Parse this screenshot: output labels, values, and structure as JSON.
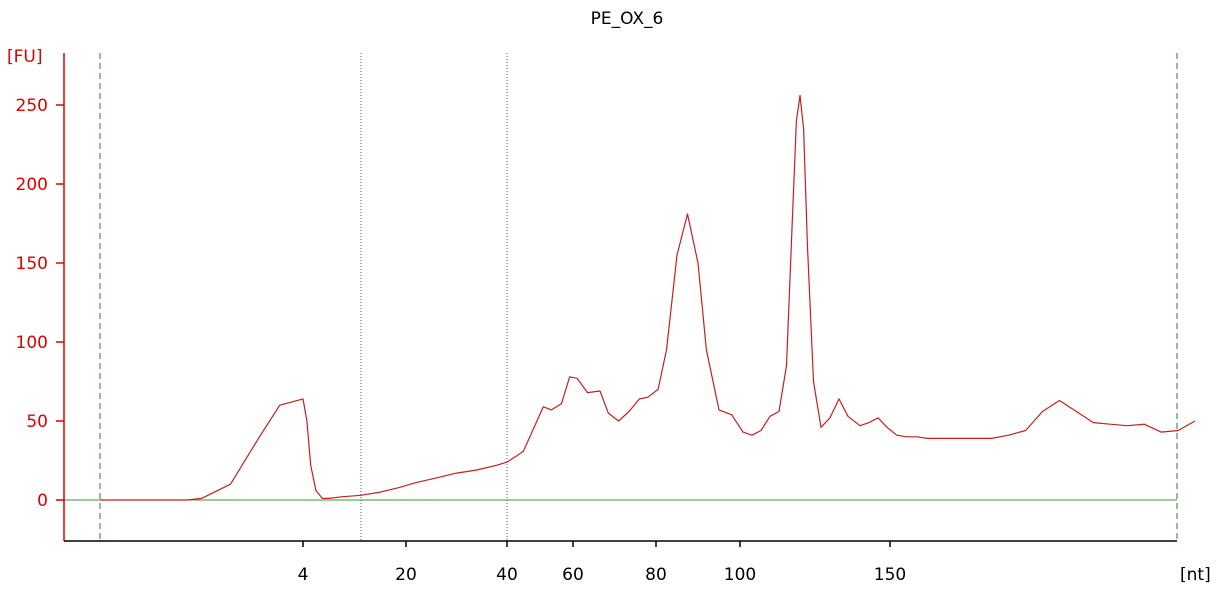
{
  "chart_data": {
    "type": "line",
    "title": "PE_OX_6",
    "ylabel": "[FU]",
    "xlabel": "[nt]",
    "ylim": [
      -25,
      285
    ],
    "y_ticks": [
      0,
      50,
      100,
      150,
      200,
      250
    ],
    "x_ticks": [
      {
        "label": "4",
        "value": 4
      },
      {
        "label": "20",
        "value": 20
      },
      {
        "label": "40",
        "value": 40
      },
      {
        "label": "60",
        "value": 60
      },
      {
        "label": "80",
        "value": 80
      },
      {
        "label": "100",
        "value": 100
      },
      {
        "label": "150",
        "value": 150
      }
    ],
    "x_scale": "nonlinear",
    "grid": false,
    "baseline": 0,
    "marker_lines": [
      {
        "value": 13,
        "style": "dotted"
      },
      {
        "value": 40,
        "style": "dotted"
      }
    ],
    "colors": {
      "trace": "#c81e1e",
      "baseline": "#3a9a3a",
      "y_axis": "#e00000",
      "x_axis": "#000000",
      "markers": "#555555",
      "boundary": "#2e7d2e"
    },
    "series": [
      {
        "x": [
          -3.0,
          -1.0,
          0.0,
          0.5,
          1.5,
          2.5,
          3.2,
          4.0,
          4.6,
          5.2,
          6.0,
          7.0,
          8.0,
          10.0,
          13.0,
          16.0,
          19.0,
          22.0,
          26.0,
          30.0,
          34.0,
          38.0,
          40.0,
          43.0,
          45.0,
          48.0,
          51.0,
          53.5,
          56.5,
          59.0,
          61.0,
          63.5,
          66.5,
          68.5,
          71.0,
          73.5,
          76.0,
          78.0,
          80.5,
          82.5,
          85.0,
          87.5,
          90.0,
          92.0,
          95.0,
          98.0,
          101.0,
          104.0,
          107.0,
          110.0,
          113.0,
          115.5,
          117.5,
          118.8,
          120.0,
          121.2,
          122.5,
          124.5,
          127.0,
          130.0,
          133.0,
          136.0,
          140.0,
          143.0,
          146.0,
          149.0,
          152.0,
          155.0,
          158.0,
          161.0,
          165.0,
          170.0,
          175.0,
          180.0,
          185.0,
          190.0,
          195.0,
          200.0,
          205.0,
          210.0,
          215.0,
          220.0,
          225.0,
          230.0,
          235.0,
          240.0
        ],
        "values": [
          0,
          0,
          0,
          1,
          10,
          40,
          60,
          64,
          50,
          22,
          6,
          1,
          1,
          2,
          3,
          5,
          8,
          11,
          14,
          17,
          19,
          22,
          24,
          28,
          31,
          45,
          59,
          57,
          61,
          78,
          77,
          68,
          69,
          55,
          50,
          56,
          64,
          65,
          70,
          95,
          155,
          181,
          150,
          95,
          57,
          54,
          43,
          41,
          44,
          53,
          56,
          85,
          180,
          240,
          256,
          235,
          160,
          75,
          46,
          52,
          64,
          53,
          47,
          49,
          52,
          46,
          41,
          40,
          40,
          39,
          39,
          39,
          39,
          39,
          41,
          44,
          56,
          63,
          56,
          49,
          48,
          47,
          48,
          43,
          44,
          50
        ]
      }
    ]
  }
}
